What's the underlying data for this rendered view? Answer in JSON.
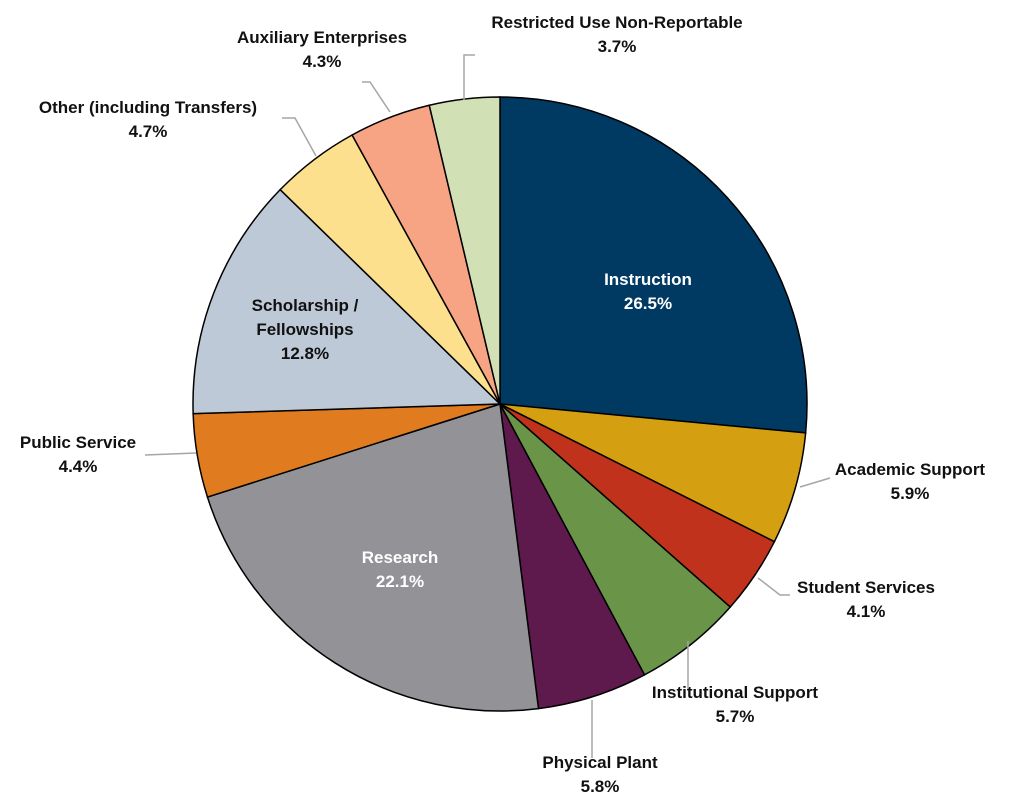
{
  "chart_data": {
    "type": "pie",
    "categories": [
      "Instruction",
      "Academic Support",
      "Student Services",
      "Institutional Support",
      "Physical Plant",
      "Research",
      "Public Service",
      "Scholarship / Fellowships",
      "Other (including Transfers)",
      "Auxiliary Enterprises",
      "Restricted Use Non-Reportable"
    ],
    "values": [
      26.5,
      5.9,
      4.1,
      5.7,
      5.8,
      22.1,
      4.4,
      12.8,
      4.7,
      4.3,
      3.7
    ],
    "value_labels": [
      "26.5%",
      "5.9%",
      "4.1%",
      "5.7%",
      "5.8%",
      "22.1%",
      "4.4%",
      "12.8%",
      "4.7%",
      "4.3%",
      "3.7%"
    ],
    "colors": [
      "#003a63",
      "#d4a012",
      "#c0321c",
      "#6a9447",
      "#5e1a4c",
      "#939297",
      "#e07b1f",
      "#bdc9d6",
      "#fde08e",
      "#f6a484",
      "#d1e0b5"
    ]
  }
}
